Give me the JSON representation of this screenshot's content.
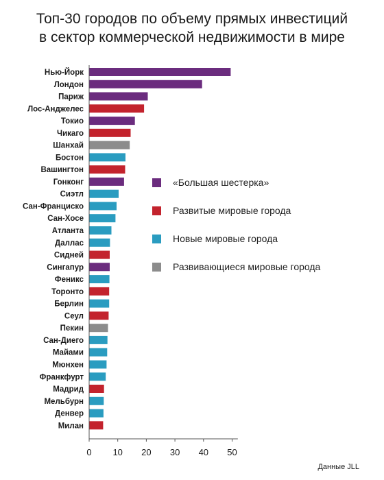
{
  "title_line1": "Топ-30 городов по объему прямых инвестиций",
  "title_line2": "в сектор коммерческой недвижимости в мире",
  "source": "Данные JLL",
  "chart_data": {
    "type": "bar",
    "orientation": "horizontal",
    "xlim": [
      0,
      52
    ],
    "xticks": [
      0,
      10,
      20,
      30,
      40,
      50
    ],
    "grid": false,
    "legend_position": "right",
    "groups": [
      {
        "key": "big6",
        "label": "«Большая шестерка»",
        "color": "#6b2c7e"
      },
      {
        "key": "developed",
        "label": "Развитые мировые города",
        "color": "#c3232d"
      },
      {
        "key": "new",
        "label": "Новые мировые города",
        "color": "#2a9cc0"
      },
      {
        "key": "emerging",
        "label": "Развивающиеся мировые города",
        "color": "#8c8c8c"
      }
    ],
    "items": [
      {
        "city": "Нью-Йорк",
        "value": 49.5,
        "group": "big6"
      },
      {
        "city": "Лондон",
        "value": 39.5,
        "group": "big6"
      },
      {
        "city": "Париж",
        "value": 20.5,
        "group": "big6"
      },
      {
        "city": "Лос-Анджелес",
        "value": 19.2,
        "group": "developed"
      },
      {
        "city": "Токио",
        "value": 16.0,
        "group": "big6"
      },
      {
        "city": "Чикаго",
        "value": 14.5,
        "group": "developed"
      },
      {
        "city": "Шанхай",
        "value": 14.2,
        "group": "emerging"
      },
      {
        "city": "Бостон",
        "value": 12.7,
        "group": "new"
      },
      {
        "city": "Вашингтон",
        "value": 12.6,
        "group": "developed"
      },
      {
        "city": "Гонконг",
        "value": 12.2,
        "group": "big6"
      },
      {
        "city": "Сиэтл",
        "value": 10.3,
        "group": "new"
      },
      {
        "city": "Сан-Франциско",
        "value": 9.6,
        "group": "new"
      },
      {
        "city": "Сан-Хосе",
        "value": 9.2,
        "group": "new"
      },
      {
        "city": "Атланта",
        "value": 7.8,
        "group": "new"
      },
      {
        "city": "Даллас",
        "value": 7.3,
        "group": "new"
      },
      {
        "city": "Сидней",
        "value": 7.2,
        "group": "developed"
      },
      {
        "city": "Сингапур",
        "value": 7.2,
        "group": "big6"
      },
      {
        "city": "Феникс",
        "value": 7.1,
        "group": "new"
      },
      {
        "city": "Торонто",
        "value": 7.0,
        "group": "developed"
      },
      {
        "city": "Берлин",
        "value": 7.0,
        "group": "new"
      },
      {
        "city": "Сеул",
        "value": 6.8,
        "group": "developed"
      },
      {
        "city": "Пекин",
        "value": 6.6,
        "group": "emerging"
      },
      {
        "city": "Сан-Диего",
        "value": 6.4,
        "group": "new"
      },
      {
        "city": "Майами",
        "value": 6.3,
        "group": "new"
      },
      {
        "city": "Мюнхен",
        "value": 6.1,
        "group": "new"
      },
      {
        "city": "Франкфурт",
        "value": 5.8,
        "group": "new"
      },
      {
        "city": "Мадрид",
        "value": 5.2,
        "group": "developed"
      },
      {
        "city": "Мельбурн",
        "value": 5.1,
        "group": "new"
      },
      {
        "city": "Денвер",
        "value": 5.0,
        "group": "new"
      },
      {
        "city": "Милан",
        "value": 4.9,
        "group": "developed"
      }
    ]
  }
}
